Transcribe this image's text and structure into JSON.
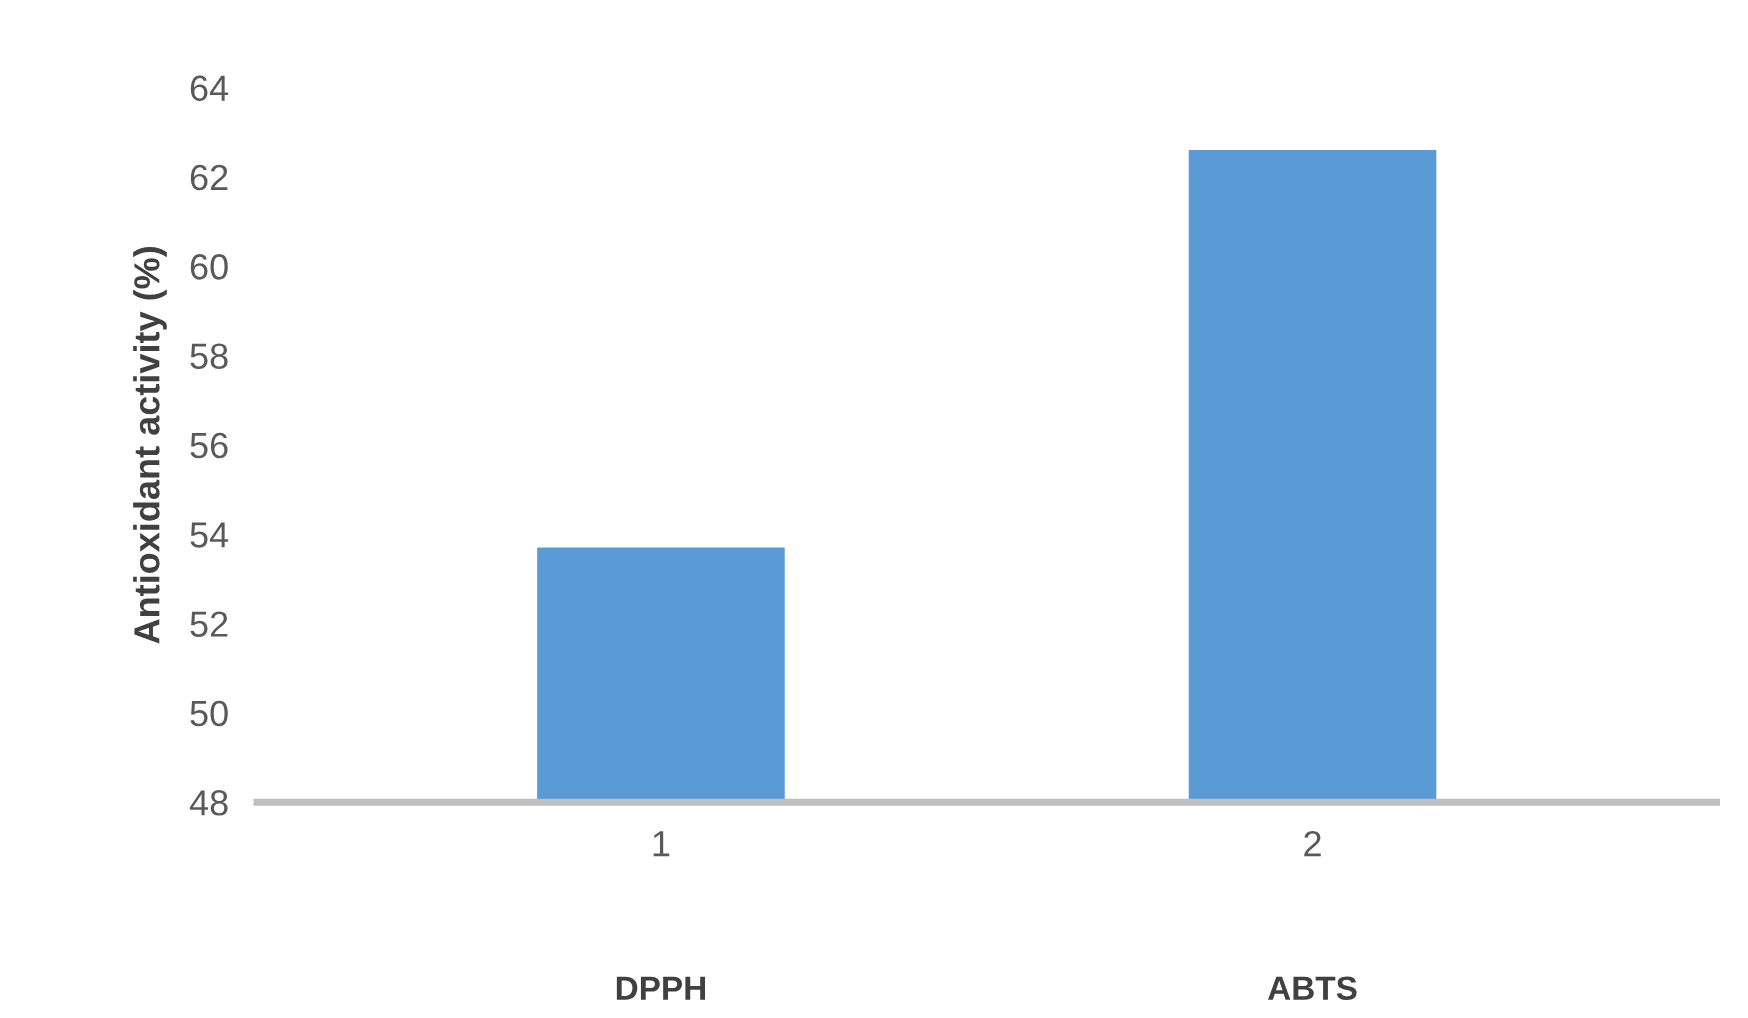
{
  "chart_data": {
    "type": "bar",
    "ylabel": "Antioxidant activity (%)",
    "categories": [
      "1",
      "2"
    ],
    "values": [
      53.7,
      62.6
    ],
    "color": "#5b9bd5",
    "ylim": [
      48,
      64
    ],
    "yticks": [
      48,
      50,
      52,
      54,
      56,
      58,
      60,
      62,
      64
    ],
    "grid": false,
    "legend": false,
    "annotations": [
      "DPPH",
      "ABTS"
    ]
  }
}
